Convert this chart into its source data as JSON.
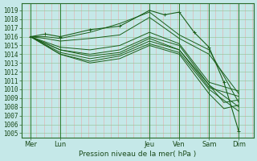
{
  "title": "Pression niveau de la mer( hPa )",
  "ylim": [
    1004.5,
    1019.8
  ],
  "yticks": [
    1005,
    1006,
    1007,
    1008,
    1009,
    1010,
    1011,
    1012,
    1013,
    1014,
    1015,
    1016,
    1017,
    1018,
    1019
  ],
  "day_labels": [
    "Mer",
    "Lun",
    "Jeu",
    "Ven",
    "Sam",
    "Dim"
  ],
  "day_positions": [
    0,
    1,
    4,
    5,
    6,
    7
  ],
  "xlim": [
    -0.3,
    7.5
  ],
  "bg_color": "#c5e8e8",
  "grid_color_v": "#e8aaaa",
  "grid_color_h": "#90c090",
  "line_color": "#1a5f1a",
  "lines": [
    {
      "x": [
        0,
        0.5,
        1,
        2,
        3,
        4,
        4.5,
        5,
        5.5,
        6,
        6.5,
        7
      ],
      "y": [
        1016.0,
        1016.3,
        1016.0,
        1016.8,
        1017.2,
        1019.0,
        1018.5,
        1018.8,
        1016.5,
        1014.8,
        1010.8,
        1005.2
      ],
      "marker": true
    },
    {
      "x": [
        0,
        0.5,
        1,
        2,
        3,
        4,
        5,
        6,
        7
      ],
      "y": [
        1016.0,
        1016.0,
        1015.8,
        1016.5,
        1017.5,
        1018.8,
        1016.2,
        1014.5,
        1008.5
      ],
      "marker": false
    },
    {
      "x": [
        0,
        0.5,
        1,
        2,
        3,
        4,
        5,
        6,
        7
      ],
      "y": [
        1016.0,
        1015.8,
        1015.5,
        1015.8,
        1016.2,
        1018.2,
        1015.8,
        1014.0,
        1009.5
      ],
      "marker": false
    },
    {
      "x": [
        0,
        1,
        2,
        3,
        4,
        5,
        6,
        7
      ],
      "y": [
        1016.0,
        1014.8,
        1014.5,
        1015.0,
        1016.5,
        1015.2,
        1010.8,
        1009.8
      ],
      "marker": false
    },
    {
      "x": [
        0,
        1,
        2,
        3,
        4,
        5,
        6,
        7
      ],
      "y": [
        1016.0,
        1014.5,
        1014.0,
        1014.5,
        1016.0,
        1015.0,
        1010.5,
        1008.0
      ],
      "marker": false
    },
    {
      "x": [
        0,
        1,
        2,
        3,
        4,
        5,
        6,
        7
      ],
      "y": [
        1016.0,
        1014.2,
        1013.5,
        1014.0,
        1015.5,
        1014.5,
        1010.2,
        1009.2
      ],
      "marker": false
    },
    {
      "x": [
        0,
        1,
        2,
        3,
        4,
        5,
        6,
        7
      ],
      "y": [
        1016.0,
        1014.0,
        1013.2,
        1013.8,
        1015.2,
        1014.2,
        1010.0,
        1007.5
      ],
      "marker": false
    },
    {
      "x": [
        0,
        1,
        2,
        3,
        4,
        5,
        6,
        6.5,
        7
      ],
      "y": [
        1016.0,
        1014.0,
        1013.0,
        1013.5,
        1015.0,
        1014.0,
        1009.5,
        1007.8,
        1008.2
      ],
      "marker": false
    },
    {
      "x": [
        0,
        1,
        2,
        3,
        4,
        5,
        6,
        6.5,
        7
      ],
      "y": [
        1016.0,
        1014.5,
        1013.8,
        1014.2,
        1015.8,
        1014.5,
        1010.5,
        1008.5,
        1008.8
      ],
      "marker": false
    }
  ],
  "tick_fontsize": 5.5,
  "xlabel_fontsize": 6.5
}
